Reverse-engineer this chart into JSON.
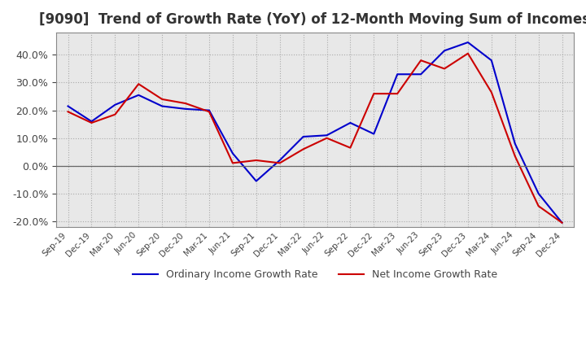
{
  "title": "[9090]  Trend of Growth Rate (YoY) of 12-Month Moving Sum of Incomes",
  "title_fontsize": 12,
  "ylim": [
    -0.22,
    0.48
  ],
  "yticks": [
    -0.2,
    -0.1,
    0.0,
    0.1,
    0.2,
    0.3,
    0.4
  ],
  "background_color": "#ffffff",
  "plot_bg_color": "#e8e8e8",
  "grid_color": "#aaaaaa",
  "ordinary_color": "#0000cc",
  "net_color": "#cc0000",
  "legend_labels": [
    "Ordinary Income Growth Rate",
    "Net Income Growth Rate"
  ],
  "x_labels": [
    "Sep-19",
    "Dec-19",
    "Mar-20",
    "Jun-20",
    "Sep-20",
    "Dec-20",
    "Mar-21",
    "Jun-21",
    "Sep-21",
    "Dec-21",
    "Mar-22",
    "Jun-22",
    "Sep-22",
    "Dec-22",
    "Mar-23",
    "Jun-23",
    "Sep-23",
    "Dec-23",
    "Mar-24",
    "Jun-24",
    "Sep-24",
    "Dec-24"
  ],
  "ordinary_income_growth": [
    0.215,
    0.16,
    0.22,
    0.255,
    0.215,
    0.205,
    0.2,
    0.045,
    -0.055,
    0.02,
    0.105,
    0.11,
    0.155,
    0.115,
    0.33,
    0.33,
    0.415,
    0.445,
    0.38,
    0.08,
    -0.1,
    -0.205
  ],
  "net_income_growth": [
    0.195,
    0.155,
    0.185,
    0.295,
    0.24,
    0.225,
    0.195,
    0.01,
    0.02,
    0.01,
    0.06,
    0.1,
    0.065,
    0.26,
    0.26,
    0.38,
    0.35,
    0.405,
    0.265,
    0.035,
    -0.145,
    -0.205
  ]
}
